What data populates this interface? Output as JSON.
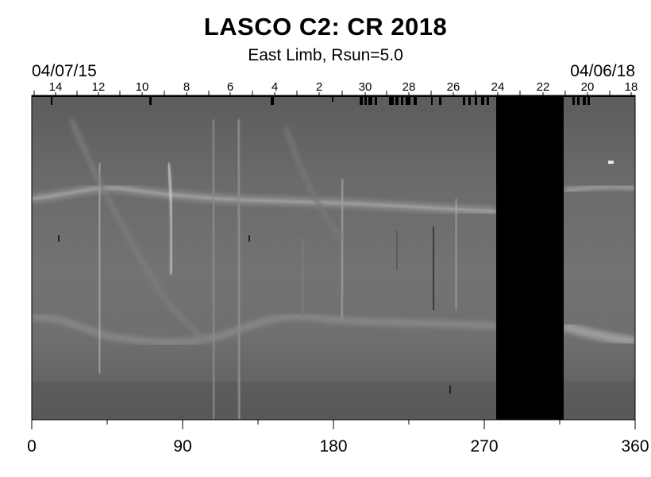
{
  "header": {
    "title": "LASCO C2: CR 2018",
    "subtitle": "East Limb, Rsun=5.0",
    "start_date": "04/07/15",
    "end_date": "04/06/18"
  },
  "top_axis": {
    "day_labels": [
      "14",
      "12",
      "10",
      "8",
      "6",
      "4",
      "2",
      "30",
      "28",
      "26",
      "24",
      "22",
      "20",
      "18"
    ]
  },
  "bottom_axis": {
    "labels": [
      "0",
      "90",
      "180",
      "270",
      "360"
    ],
    "range": [
      0,
      360
    ]
  },
  "data_gap": {
    "start": 277,
    "end": 317
  },
  "colors": {
    "background": "#ffffff",
    "plot_base": "#6e6e6e",
    "gap": "#000000"
  }
}
